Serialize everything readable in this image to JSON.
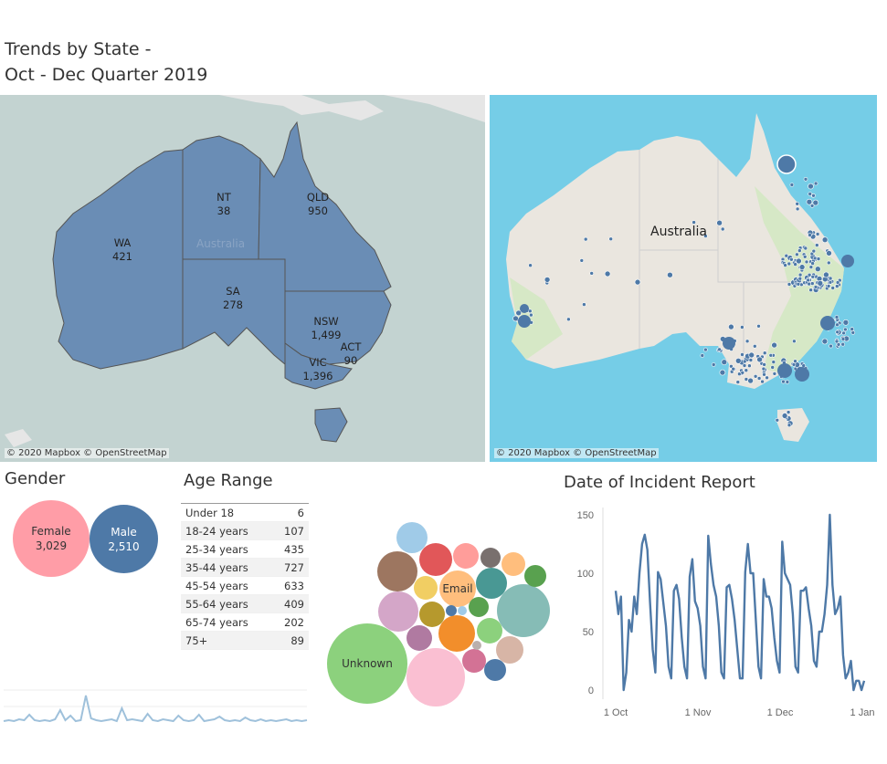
{
  "title_line1": "Trends by State -",
  "title_line2": "Oct - Dec Quarter 2019",
  "map_left": {
    "credit": "© 2020 Mapbox © OpenStreetMap",
    "faint_label": "Australia",
    "states": [
      {
        "name": "WA",
        "value": "421"
      },
      {
        "name": "NT",
        "value": "38"
      },
      {
        "name": "QLD",
        "value": "950"
      },
      {
        "name": "SA",
        "value": "278"
      },
      {
        "name": "NSW",
        "value": "1,499"
      },
      {
        "name": "ACT",
        "value": "90"
      },
      {
        "name": "VIC",
        "value": "1,396"
      }
    ]
  },
  "map_right": {
    "credit": "© 2020 Mapbox © OpenStreetMap",
    "country_label": "Australia"
  },
  "gender": {
    "title": "Gender",
    "female_label": "Female",
    "female_value": "3,029",
    "male_label": "Male",
    "male_value": "2,510",
    "female_color": "#ff9da7",
    "male_color": "#4e79a7"
  },
  "age_range": {
    "title": "Age Range",
    "rows": [
      {
        "label": "Under 18",
        "value": "6"
      },
      {
        "label": "18-24 years",
        "value": "107"
      },
      {
        "label": "25-34 years",
        "value": "435"
      },
      {
        "label": "35-44 years",
        "value": "727"
      },
      {
        "label": "45-54 years",
        "value": "633"
      },
      {
        "label": "55-64 years",
        "value": "409"
      },
      {
        "label": "65-74 years",
        "value": "202"
      },
      {
        "label": "75+",
        "value": "89"
      }
    ]
  },
  "channel_bubbles": {
    "unknown_label": "Unknown",
    "email_label": "Email"
  },
  "chart_data": {
    "type": "line",
    "title": "Date of Incident Report",
    "xlabel": "",
    "ylabel": "",
    "x_ticks": [
      "1 Oct",
      "1 Nov",
      "1 Dec",
      "1 Jan"
    ],
    "y_ticks": [
      0,
      50,
      100,
      150
    ],
    "ylim": [
      0,
      150
    ],
    "xlim": [
      0,
      94
    ],
    "grid": "none",
    "series": [
      {
        "color": "#4e79a7",
        "values": [
          85,
          65,
          80,
          0,
          15,
          60,
          50,
          80,
          65,
          100,
          125,
          133,
          120,
          75,
          35,
          15,
          101,
          95,
          75,
          55,
          20,
          10,
          85,
          90,
          78,
          45,
          20,
          10,
          97,
          112,
          76,
          70,
          55,
          20,
          10,
          132,
          108,
          90,
          80,
          55,
          15,
          10,
          88,
          90,
          78,
          60,
          35,
          10,
          10,
          101,
          125,
          100,
          100,
          60,
          20,
          10,
          95,
          80,
          80,
          70,
          45,
          25,
          15,
          127,
          100,
          95,
          90,
          65,
          20,
          15,
          85,
          85,
          88,
          70,
          55,
          25,
          20,
          50,
          50,
          65,
          90,
          150,
          90,
          65,
          70,
          80,
          30,
          10,
          15,
          25,
          0,
          8,
          8,
          0,
          8
        ]
      }
    ]
  }
}
